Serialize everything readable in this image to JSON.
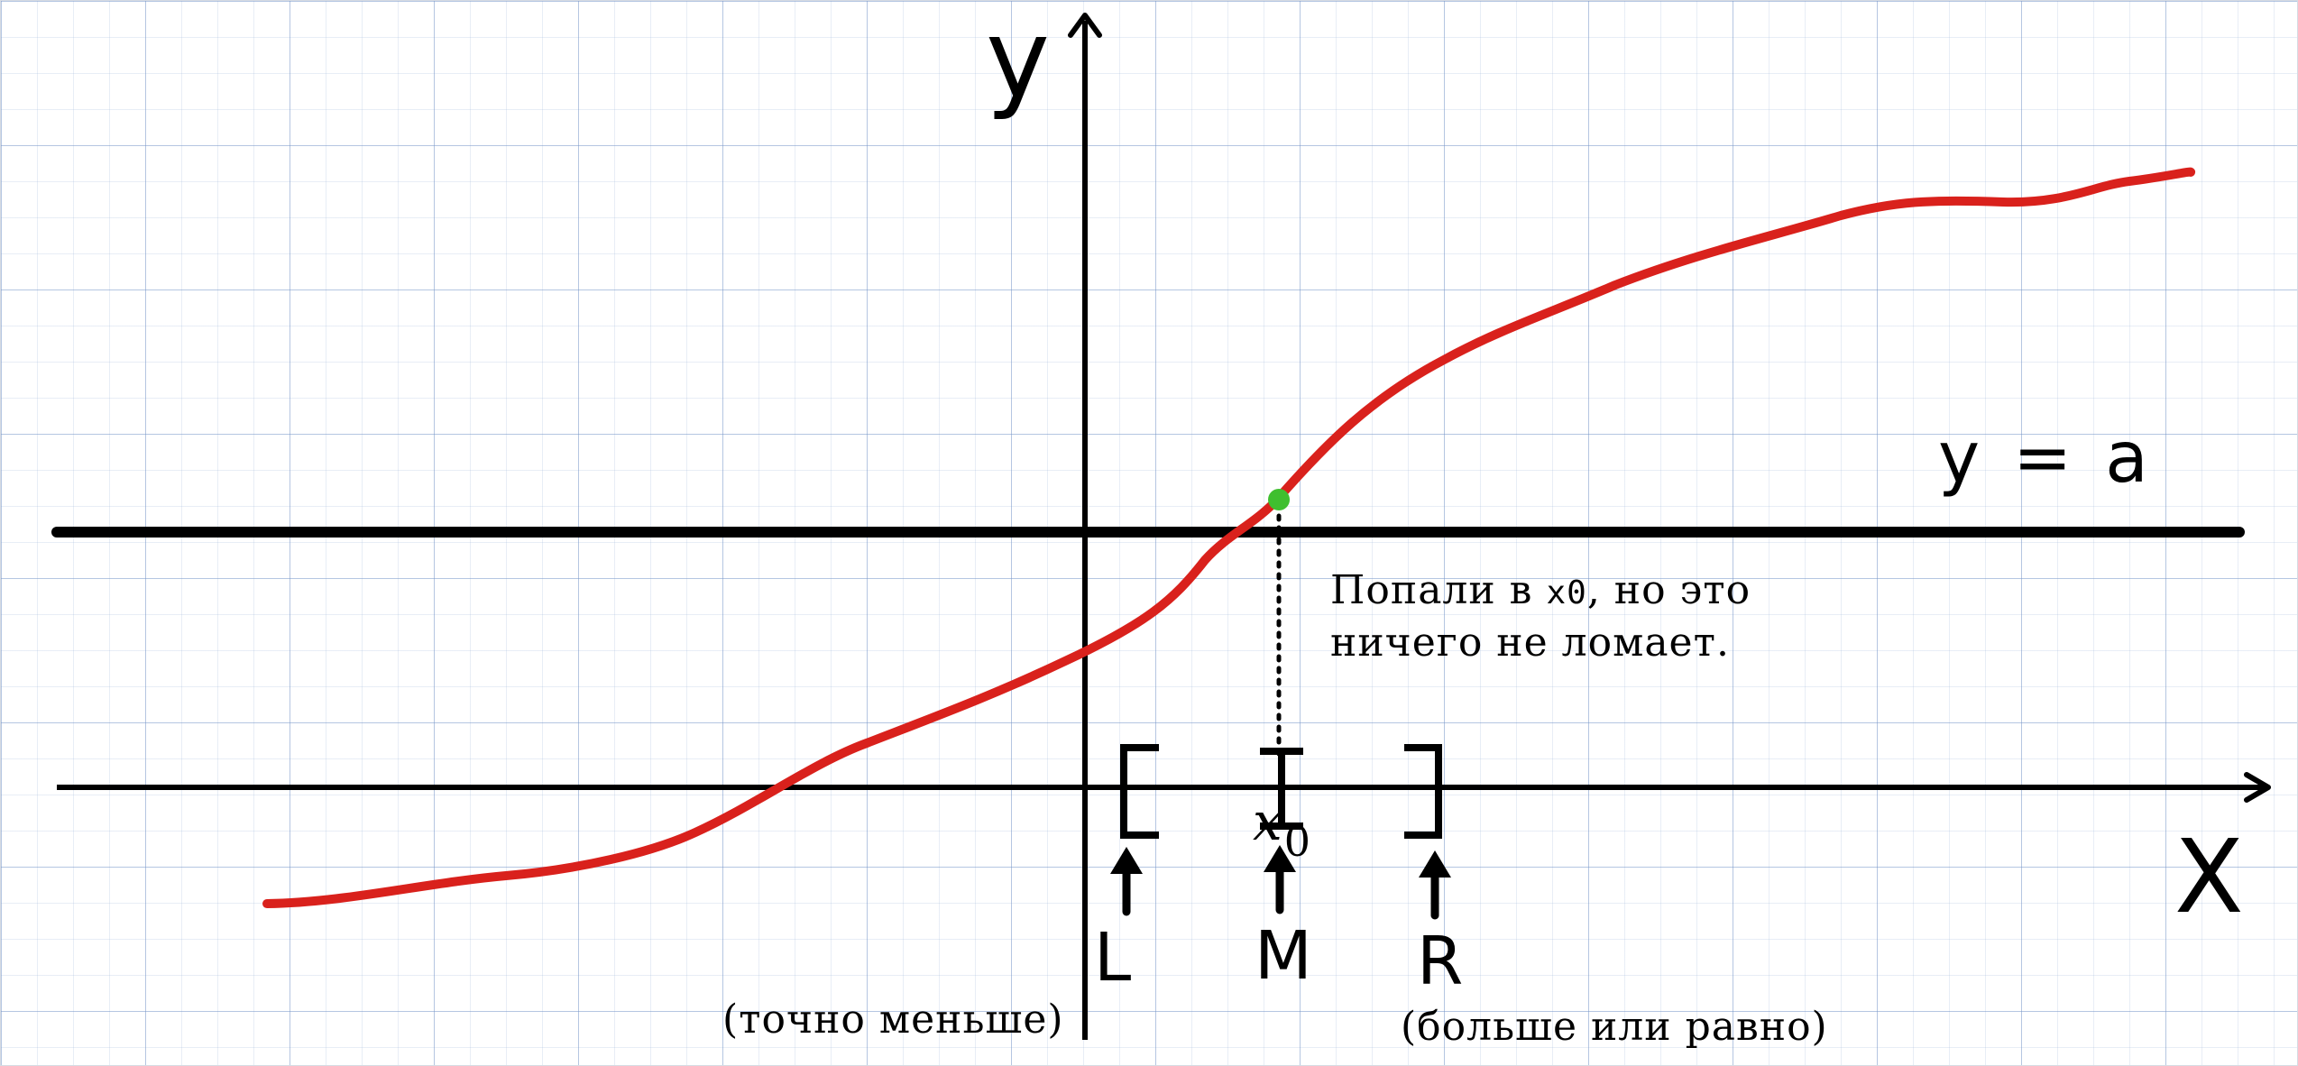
{
  "axes": {
    "x_label": "X",
    "y_label": "y"
  },
  "line": {
    "label": "y = a"
  },
  "point": {
    "label_main": "x",
    "label_sub": "0"
  },
  "note": {
    "line1_start": "Попали в ",
    "line1_code": "x0",
    "line1_end": ", но это",
    "line2": "ничего не ломает."
  },
  "pointers": {
    "left": "L",
    "middle": "M",
    "right": "R"
  },
  "captions": {
    "left": "(точно меньше)",
    "right": "(больше или равно)"
  },
  "colors": {
    "curve": "#d9211c",
    "point": "#3fbf2f",
    "ink": "#000000"
  }
}
